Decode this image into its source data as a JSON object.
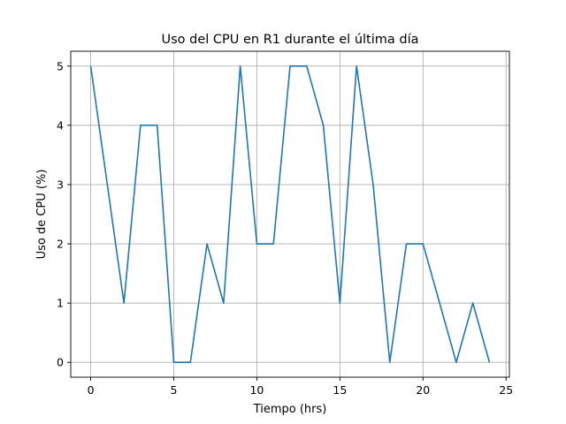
{
  "chart_data": {
    "type": "line",
    "title": "Uso del CPU en R1 durante el última día",
    "xlabel": "Tiempo (hrs)",
    "ylabel": "Uso de CPU (%)",
    "xlim": [
      -1.2,
      25.2
    ],
    "ylim": [
      -0.25,
      5.25
    ],
    "xticks": [
      0,
      5,
      10,
      15,
      20,
      25
    ],
    "yticks": [
      0,
      1,
      2,
      3,
      4,
      5
    ],
    "xtick_labels": [
      "0",
      "5",
      "10",
      "15",
      "20",
      "25"
    ],
    "ytick_labels": [
      "0",
      "1",
      "2",
      "3",
      "4",
      "5"
    ],
    "grid": true,
    "series": [
      {
        "color": "#1f77b4",
        "x": [
          0,
          1,
          2,
          3,
          4,
          5,
          6,
          7,
          8,
          9,
          10,
          11,
          12,
          13,
          14,
          15,
          16,
          17,
          18,
          19,
          20,
          21,
          22,
          23,
          24
        ],
        "y": [
          5,
          3,
          1,
          4,
          4,
          0,
          0,
          2,
          1,
          5,
          2,
          2,
          5,
          5,
          4,
          1,
          5,
          3,
          0,
          2,
          2,
          1,
          0,
          1,
          0
        ]
      }
    ]
  }
}
